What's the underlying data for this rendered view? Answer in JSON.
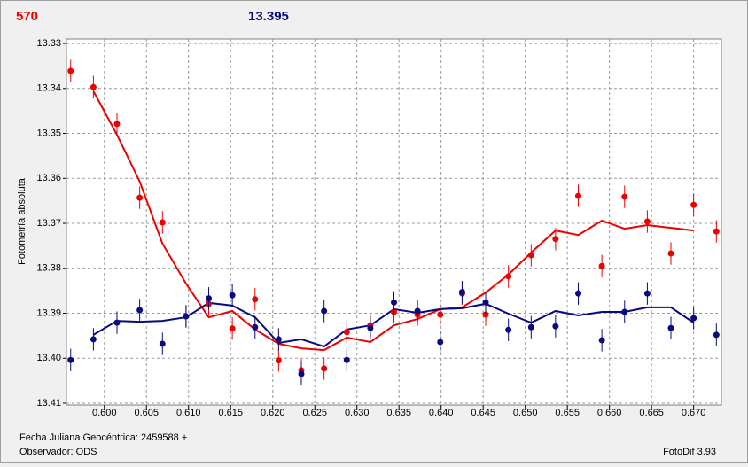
{
  "chart_data": {
    "type": "scatter",
    "header_left": "570",
    "header_right": "13.395",
    "ylabel": "Fotometría absoluta",
    "xlabel": "Fecha Juliana Geocéntrica: 2459588 +",
    "observer": "Observador: ODS",
    "software": "FotoDif 3.93",
    "xlim": [
      0.5955,
      0.6733
    ],
    "ylim": [
      13.4104,
      13.329
    ],
    "xticks": [
      {
        "value": 0.6,
        "label": "0.600"
      },
      0.605,
      {
        "value": 0.61,
        "label": "0.610"
      },
      0.615,
      {
        "value": 0.62,
        "label": "0.620"
      },
      0.625,
      {
        "value": 0.63,
        "label": "0.630"
      },
      0.635,
      {
        "value": 0.64,
        "label": "0.640"
      },
      0.645,
      {
        "value": 0.65,
        "label": "0.650"
      },
      0.655,
      {
        "value": 0.66,
        "label": "0.660"
      },
      0.665,
      {
        "value": 0.67,
        "label": "0.670"
      }
    ],
    "yticks": [
      13.33,
      13.34,
      13.35,
      13.36,
      13.37,
      13.38,
      13.39,
      {
        "value": 13.4,
        "label": "13.40"
      },
      13.41
    ],
    "grid": true,
    "x": [
      0.596,
      0.5987,
      0.6015,
      0.6042,
      0.6069,
      0.6097,
      0.6124,
      0.6152,
      0.6179,
      0.6207,
      0.6234,
      0.6261,
      0.6288,
      0.6316,
      0.6344,
      0.6372,
      0.6399,
      0.6425,
      0.6453,
      0.648,
      0.6507,
      0.6536,
      0.6563,
      0.6591,
      0.6618,
      0.6645,
      0.6673,
      0.67,
      0.6727
    ],
    "series": [
      {
        "color": "#ee0000",
        "style": "points",
        "error": 0.0025,
        "values": [
          13.3361,
          13.3397,
          13.3479,
          13.3643,
          13.3698,
          13.3907,
          13.3879,
          13.3934,
          13.3869,
          13.4005,
          13.4027,
          13.4023,
          13.3942,
          13.3927,
          13.3897,
          13.3903,
          13.3903,
          13.3856,
          13.3903,
          13.3818,
          13.3771,
          13.3735,
          13.3639,
          13.3795,
          13.3641,
          13.3696,
          13.3767,
          13.3659,
          13.3718
        ]
      },
      {
        "color": "#0a0a80",
        "style": "points",
        "error": 0.0025,
        "values": [
          13.4004,
          13.3958,
          13.3921,
          13.3893,
          13.3968,
          13.3907,
          13.3867,
          13.386,
          13.3931,
          13.3958,
          13.4035,
          13.3895,
          13.4004,
          13.3933,
          13.3876,
          13.3895,
          13.3964,
          13.3853,
          13.3876,
          13.3937,
          13.3931,
          13.3929,
          13.3856,
          13.396,
          13.3897,
          13.3856,
          13.3933,
          13.3911,
          13.3948
        ]
      },
      {
        "color": "#ee0000",
        "style": "line",
        "values": [
          null,
          13.3406,
          13.3503,
          13.3607,
          13.3745,
          13.3834,
          13.3909,
          13.3895,
          13.3936,
          13.3968,
          13.3978,
          13.3982,
          13.3954,
          13.3964,
          13.3927,
          13.3913,
          13.3891,
          13.3887,
          13.3854,
          13.3814,
          13.3765,
          13.3716,
          13.3726,
          13.3694,
          13.3712,
          13.3704,
          13.371,
          13.3716,
          null
        ]
      },
      {
        "color": "#0a0a80",
        "style": "line",
        "values": [
          null,
          13.3948,
          13.3917,
          13.3919,
          13.3917,
          13.3909,
          13.3877,
          13.3883,
          13.3909,
          13.3966,
          13.3958,
          13.3974,
          13.3936,
          13.3927,
          13.3891,
          13.3899,
          13.3891,
          13.3889,
          13.3879,
          13.3901,
          13.3921,
          13.3895,
          13.3905,
          13.3897,
          13.3897,
          13.3887,
          13.3887,
          13.3921,
          null
        ]
      }
    ]
  }
}
